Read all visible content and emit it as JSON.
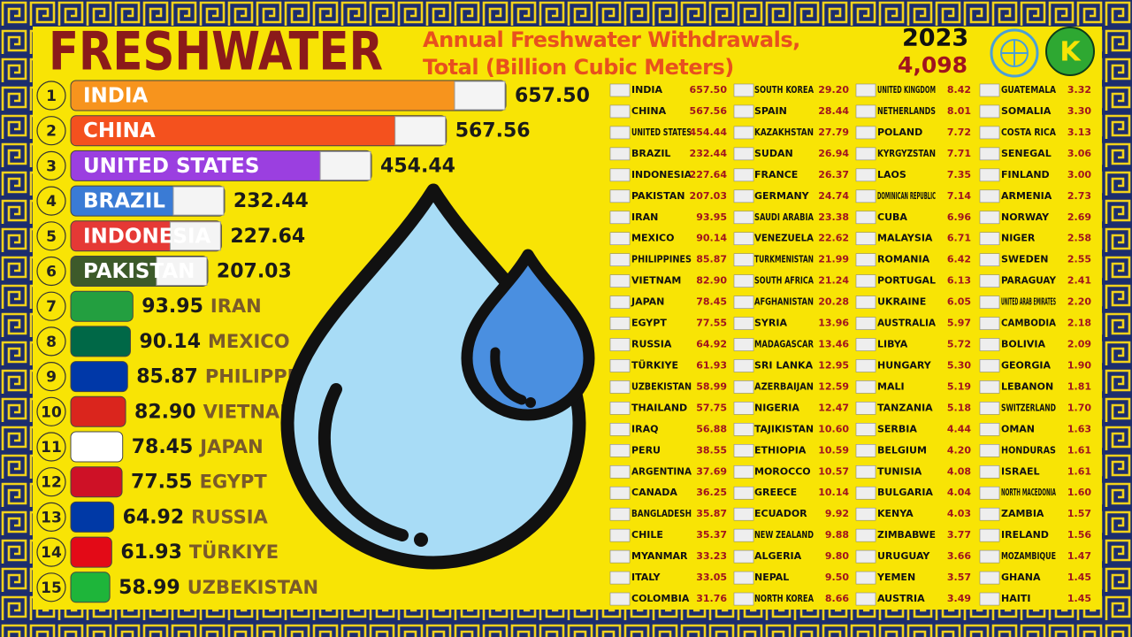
{
  "chart_data": {
    "type": "bar",
    "title": "FRESHWATER",
    "subtitle": "Annual Freshwater Withdrawals, Total (Billion Cubic Meters)",
    "ranks": [
      1,
      2,
      3,
      4,
      5,
      6,
      7,
      8,
      9,
      10,
      11,
      12,
      13,
      14,
      15
    ],
    "categories": [
      "INDIA",
      "CHINA",
      "UNITED STATES",
      "BRAZIL",
      "INDONESIA",
      "PAKISTAN",
      "IRAN",
      "MEXICO",
      "PHILIPPINES",
      "VIETNAM",
      "JAPAN",
      "EGYPT",
      "RUSSIA",
      "TÜRKIYE",
      "UZBEKISTAN"
    ],
    "values": [
      657.5,
      567.56,
      454.44,
      232.44,
      227.64,
      207.03,
      93.95,
      90.14,
      85.87,
      82.9,
      78.45,
      77.55,
      64.92,
      61.93,
      58.99
    ],
    "value_labels": [
      "657.50",
      "567.56",
      "454.44",
      "232.44",
      "227.64",
      "207.03",
      "93.95",
      "90.14",
      "85.87",
      "82.90",
      "78.45",
      "77.55",
      "64.92",
      "61.93",
      "58.99"
    ],
    "colors": [
      "#f7941d",
      "#f4511e",
      "#9b3fe0",
      "#3a7bd5",
      "#e53935",
      "#3d5a2a",
      "#239f40",
      "#006847",
      "#0038a8",
      "#da251d",
      "#ffffff",
      "#ce1126",
      "#0039a6",
      "#e30a17",
      "#1eb53a"
    ]
  },
  "header": {
    "year": "2023",
    "total": "4,098",
    "logo_text": "K"
  },
  "table": {
    "columns": [
      [
        [
          "INDIA",
          "657.50"
        ],
        [
          "CHINA",
          "567.56"
        ],
        [
          "UNITED STATES",
          "454.44"
        ],
        [
          "BRAZIL",
          "232.44"
        ],
        [
          "INDONESIA",
          "227.64"
        ],
        [
          "PAKISTAN",
          "207.03"
        ],
        [
          "IRAN",
          "93.95"
        ],
        [
          "MEXICO",
          "90.14"
        ],
        [
          "PHILIPPINES",
          "85.87"
        ],
        [
          "VIETNAM",
          "82.90"
        ],
        [
          "JAPAN",
          "78.45"
        ],
        [
          "EGYPT",
          "77.55"
        ],
        [
          "RUSSIA",
          "64.92"
        ],
        [
          "TÜRKIYE",
          "61.93"
        ],
        [
          "UZBEKISTAN",
          "58.99"
        ],
        [
          "THAILAND",
          "57.75"
        ],
        [
          "IRAQ",
          "56.88"
        ],
        [
          "PERU",
          "38.55"
        ],
        [
          "ARGENTINA",
          "37.69"
        ],
        [
          "CANADA",
          "36.25"
        ],
        [
          "BANGLADESH",
          "35.87"
        ],
        [
          "CHILE",
          "35.37"
        ],
        [
          "MYANMAR",
          "33.23"
        ],
        [
          "ITALY",
          "33.05"
        ],
        [
          "COLOMBIA",
          "31.76"
        ]
      ],
      [
        [
          "SOUTH KOREA",
          "29.20"
        ],
        [
          "SPAIN",
          "28.44"
        ],
        [
          "KAZAKHSTAN",
          "27.79"
        ],
        [
          "SUDAN",
          "26.94"
        ],
        [
          "FRANCE",
          "26.37"
        ],
        [
          "GERMANY",
          "24.74"
        ],
        [
          "SAUDI ARABIA",
          "23.38"
        ],
        [
          "VENEZUELA",
          "22.62"
        ],
        [
          "TURKMENISTAN",
          "21.99"
        ],
        [
          "SOUTH AFRICA",
          "21.24"
        ],
        [
          "AFGHANISTAN",
          "20.28"
        ],
        [
          "SYRIA",
          "13.96"
        ],
        [
          "MADAGASCAR",
          "13.46"
        ],
        [
          "SRI LANKA",
          "12.95"
        ],
        [
          "AZERBAIJAN",
          "12.59"
        ],
        [
          "NIGERIA",
          "12.47"
        ],
        [
          "TAJIKISTAN",
          "10.60"
        ],
        [
          "ETHIOPIA",
          "10.59"
        ],
        [
          "MOROCCO",
          "10.57"
        ],
        [
          "GREECE",
          "10.14"
        ],
        [
          "ECUADOR",
          "9.92"
        ],
        [
          "NEW ZEALAND",
          "9.88"
        ],
        [
          "ALGERIA",
          "9.80"
        ],
        [
          "NEPAL",
          "9.50"
        ],
        [
          "NORTH KOREA",
          "8.66"
        ]
      ],
      [
        [
          "UNITED KINGDOM",
          "8.42"
        ],
        [
          "NETHERLANDS",
          "8.01"
        ],
        [
          "POLAND",
          "7.72"
        ],
        [
          "KYRGYZSTAN",
          "7.71"
        ],
        [
          "LAOS",
          "7.35"
        ],
        [
          "DOMINICAN REPUBLIC",
          "7.14"
        ],
        [
          "CUBA",
          "6.96"
        ],
        [
          "MALAYSIA",
          "6.71"
        ],
        [
          "ROMANIA",
          "6.42"
        ],
        [
          "PORTUGAL",
          "6.13"
        ],
        [
          "UKRAINE",
          "6.05"
        ],
        [
          "AUSTRALIA",
          "5.97"
        ],
        [
          "LIBYA",
          "5.72"
        ],
        [
          "HUNGARY",
          "5.30"
        ],
        [
          "MALI",
          "5.19"
        ],
        [
          "TANZANIA",
          "5.18"
        ],
        [
          "SERBIA",
          "4.44"
        ],
        [
          "BELGIUM",
          "4.20"
        ],
        [
          "TUNISIA",
          "4.08"
        ],
        [
          "BULGARIA",
          "4.04"
        ],
        [
          "KENYA",
          "4.03"
        ],
        [
          "ZIMBABWE",
          "3.77"
        ],
        [
          "URUGUAY",
          "3.66"
        ],
        [
          "YEMEN",
          "3.57"
        ],
        [
          "AUSTRIA",
          "3.49"
        ]
      ],
      [
        [
          "GUATEMALA",
          "3.32"
        ],
        [
          "SOMALIA",
          "3.30"
        ],
        [
          "COSTA RICA",
          "3.13"
        ],
        [
          "SENEGAL",
          "3.06"
        ],
        [
          "FINLAND",
          "3.00"
        ],
        [
          "ARMENIA",
          "2.73"
        ],
        [
          "NORWAY",
          "2.69"
        ],
        [
          "NIGER",
          "2.58"
        ],
        [
          "SWEDEN",
          "2.55"
        ],
        [
          "PARAGUAY",
          "2.41"
        ],
        [
          "UNITED ARAB EMIRATES",
          "2.20"
        ],
        [
          "CAMBODIA",
          "2.18"
        ],
        [
          "BOLIVIA",
          "2.09"
        ],
        [
          "GEORGIA",
          "1.90"
        ],
        [
          "LEBANON",
          "1.81"
        ],
        [
          "SWITZERLAND",
          "1.70"
        ],
        [
          "OMAN",
          "1.63"
        ],
        [
          "HONDURAS",
          "1.61"
        ],
        [
          "ISRAEL",
          "1.61"
        ],
        [
          "NORTH MACEDONIA",
          "1.60"
        ],
        [
          "ZAMBIA",
          "1.57"
        ],
        [
          "IRELAND",
          "1.56"
        ],
        [
          "MOZAMBIQUE",
          "1.47"
        ],
        [
          "GHANA",
          "1.45"
        ],
        [
          "HAITI",
          "1.45"
        ]
      ]
    ]
  }
}
